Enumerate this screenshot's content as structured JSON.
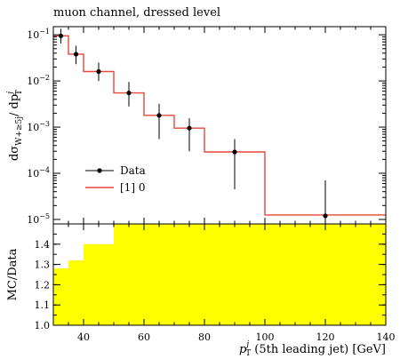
{
  "title": "muon channel, dressed level",
  "chart_data": [
    {
      "type": "line",
      "panel": "main",
      "title": "muon channel, dressed level",
      "ylabel_main": "dσ",
      "ylabel_sub": "W+≥5j",
      "ylabel_mid": "/ dp",
      "ylabel_sup": "j",
      "ylabel_sub2": "T",
      "yscale": "log",
      "ylim": [
        8e-06,
        0.15
      ],
      "xlim": [
        30,
        140
      ],
      "y_ticks": [
        {
          "value": 0.1,
          "base": "10",
          "exp": "−1"
        },
        {
          "value": 0.01,
          "base": "10",
          "exp": "−2"
        },
        {
          "value": 0.001,
          "base": "10",
          "exp": "−3"
        },
        {
          "value": 0.0001,
          "base": "10",
          "exp": "−4"
        },
        {
          "value": 1e-05,
          "base": "10",
          "exp": "−5"
        }
      ],
      "legend_position": "bottom-left",
      "series": [
        {
          "name": "Data",
          "style": "points",
          "color": "#000000",
          "x": [
            32.5,
            37.5,
            45,
            55,
            65,
            75,
            90,
            120
          ],
          "y": [
            0.095,
            0.038,
            0.016,
            0.0055,
            0.0018,
            0.00095,
            0.00029,
            1.2e-05
          ],
          "yerr_low": [
            0.03,
            0.015,
            0.006,
            0.0027,
            0.00125,
            0.00065,
            0.000245,
            1.2e-05
          ],
          "yerr_high": [
            0.04,
            0.02,
            0.009,
            0.004,
            0.0014,
            0.0006,
            0.00026,
            5.8e-05
          ]
        },
        {
          "name": "[1] 0",
          "style": "step",
          "color": "#e8473a",
          "bin_edges": [
            30,
            35,
            40,
            50,
            60,
            70,
            80,
            100,
            140
          ],
          "values": [
            0.095,
            0.038,
            0.016,
            0.0055,
            0.0018,
            0.00095,
            0.00029,
            1.25e-05
          ]
        }
      ]
    },
    {
      "type": "area",
      "panel": "ratio",
      "ylabel": "MC/Data",
      "xlabel_main": "p",
      "xlabel_sup": "j",
      "xlabel_sub": "T",
      "xlabel_rest": " (5th leading jet) [GeV]",
      "ylim": [
        1.0,
        1.5
      ],
      "xlim": [
        30,
        140
      ],
      "y_ticks": [
        "1.0",
        "1.1",
        "1.2",
        "1.3",
        "1.4"
      ],
      "x_ticks": [
        "40",
        "60",
        "80",
        "100",
        "120",
        "140"
      ],
      "band_color": "#ffff00",
      "band": {
        "bin_edges": [
          30,
          35,
          40,
          50,
          140
        ],
        "upper": [
          1.28,
          1.32,
          1.4,
          1.5
        ],
        "lower": [
          1.0,
          1.0,
          1.0,
          1.0
        ]
      }
    }
  ]
}
